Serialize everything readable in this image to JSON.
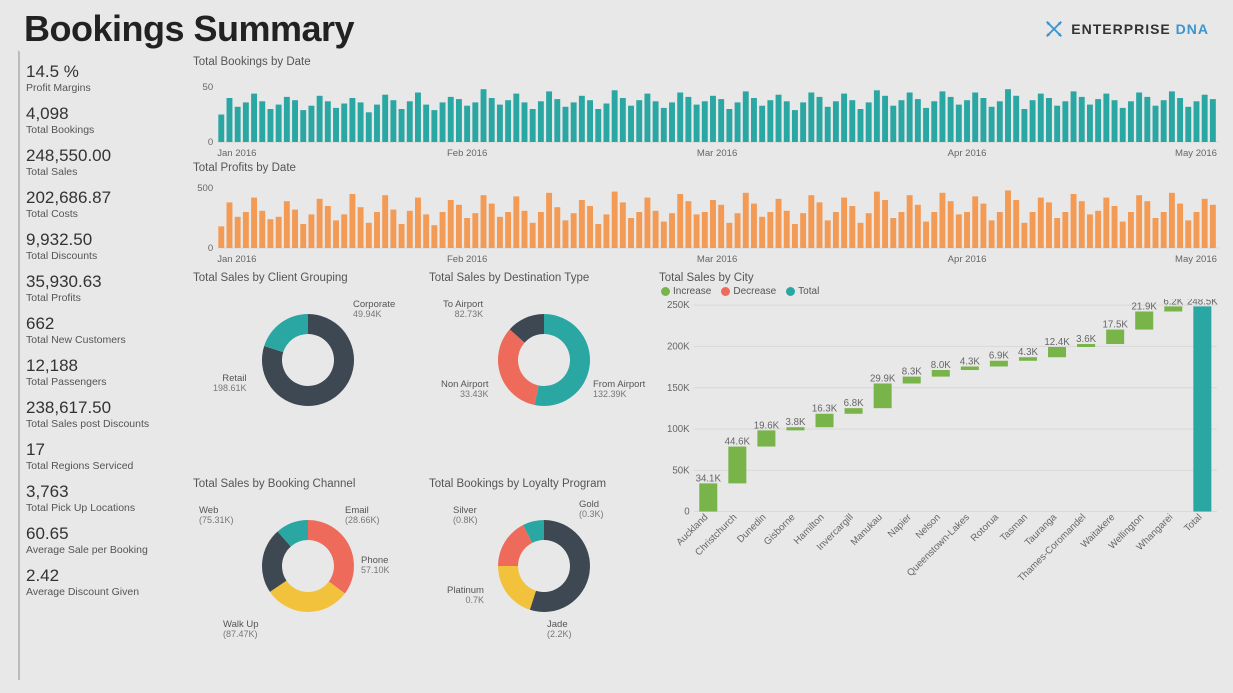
{
  "page": {
    "title": "Bookings Summary",
    "brand_main": "ENTERPRISE",
    "brand_accent": "DNA"
  },
  "colors": {
    "teal": "#2aa7a3",
    "orange": "#f39a54",
    "dark": "#3d4852",
    "yellow": "#f3c23d",
    "red": "#ee6a5a",
    "green": "#79b44b",
    "grid": "#d8d8d8",
    "axis_text": "#666666",
    "bg": "#e8e8e8"
  },
  "kpis": [
    {
      "value": "14.5 %",
      "label": "Profit Margins"
    },
    {
      "value": "4,098",
      "label": "Total Bookings"
    },
    {
      "value": "248,550.00",
      "label": "Total Sales"
    },
    {
      "value": "202,686.87",
      "label": "Total Costs"
    },
    {
      "value": "9,932.50",
      "label": "Total Discounts"
    },
    {
      "value": "35,930.63",
      "label": "Total Profits"
    },
    {
      "value": "662",
      "label": "Total New Customers"
    },
    {
      "value": "12,188",
      "label": "Total Passengers"
    },
    {
      "value": "238,617.50",
      "label": "Total Sales post Discounts"
    },
    {
      "value": "17",
      "label": "Total Regions Serviced"
    },
    {
      "value": "3,763",
      "label": "Total Pick Up Locations"
    },
    {
      "value": "60.65",
      "label": "Average Sale per Booking"
    },
    {
      "value": "2.42",
      "label": "Average Discount Given"
    }
  ],
  "bookings_by_date": {
    "title": "Total Bookings by Date",
    "type": "bar",
    "y_ticks": [
      0,
      50
    ],
    "y_max": 60,
    "x_labels": [
      "Jan 2016",
      "Feb 2016",
      "Mar 2016",
      "Apr 2016",
      "May 2016"
    ],
    "bar_color": "#2aa7a3",
    "values": [
      25,
      40,
      32,
      36,
      44,
      37,
      30,
      34,
      41,
      38,
      29,
      33,
      42,
      37,
      31,
      35,
      40,
      36,
      27,
      34,
      43,
      38,
      30,
      37,
      45,
      34,
      29,
      36,
      41,
      39,
      33,
      36,
      48,
      40,
      34,
      38,
      44,
      36,
      30,
      37,
      46,
      39,
      32,
      36,
      42,
      38,
      30,
      35,
      47,
      40,
      33,
      38,
      44,
      37,
      31,
      36,
      45,
      41,
      34,
      37,
      42,
      39,
      30,
      36,
      46,
      40,
      33,
      38,
      43,
      37,
      29,
      36,
      45,
      41,
      32,
      37,
      44,
      38,
      30,
      36,
      47,
      42,
      33,
      38,
      45,
      39,
      31,
      37,
      46,
      41,
      34,
      38,
      45,
      40,
      32,
      37,
      48,
      42,
      30,
      38,
      44,
      40,
      33,
      37,
      46,
      41,
      34,
      39,
      44,
      38,
      31,
      37,
      45,
      41,
      33,
      38,
      46,
      40,
      32,
      37,
      43,
      39
    ]
  },
  "profits_by_date": {
    "title": "Total Profits by Date",
    "type": "bar",
    "y_ticks": [
      0,
      500
    ],
    "y_max": 550,
    "x_labels": [
      "Jan 2016",
      "Feb 2016",
      "Mar 2016",
      "Apr 2016",
      "May 2016"
    ],
    "bar_color": "#f39a54",
    "values": [
      180,
      380,
      260,
      300,
      420,
      310,
      240,
      260,
      390,
      320,
      200,
      280,
      410,
      350,
      230,
      280,
      450,
      340,
      210,
      300,
      440,
      320,
      200,
      310,
      420,
      280,
      190,
      300,
      400,
      360,
      250,
      290,
      440,
      370,
      260,
      300,
      430,
      310,
      210,
      300,
      460,
      340,
      230,
      290,
      400,
      350,
      200,
      280,
      470,
      380,
      250,
      300,
      420,
      310,
      220,
      290,
      450,
      390,
      280,
      300,
      400,
      360,
      210,
      290,
      460,
      370,
      260,
      300,
      410,
      310,
      200,
      290,
      440,
      380,
      230,
      300,
      420,
      350,
      210,
      290,
      470,
      400,
      250,
      300,
      440,
      360,
      220,
      300,
      460,
      390,
      280,
      300,
      430,
      370,
      230,
      300,
      480,
      400,
      210,
      300,
      420,
      380,
      250,
      300,
      450,
      390,
      280,
      310,
      420,
      350,
      220,
      300,
      440,
      390,
      250,
      300,
      460,
      370,
      230,
      300,
      410,
      360
    ]
  },
  "donut_client": {
    "title": "Total Sales by Client Grouping",
    "slices": [
      {
        "label": "Retail",
        "value": "198.61K",
        "pct": 79.9,
        "color": "#3d4852"
      },
      {
        "label": "Corporate",
        "value": "49.94K",
        "pct": 20.1,
        "color": "#2aa7a3"
      }
    ]
  },
  "donut_destination": {
    "title": "Total Sales by Destination Type",
    "slices": [
      {
        "label": "From Airport",
        "value": "132.39K",
        "pct": 53.3,
        "color": "#2aa7a3"
      },
      {
        "label": "To Airport",
        "value": "82.73K",
        "pct": 33.3,
        "color": "#ee6a5a"
      },
      {
        "label": "Non Airport",
        "value": "33.43K",
        "pct": 13.4,
        "color": "#3d4852"
      }
    ]
  },
  "donut_channel": {
    "title": "Total Sales by Booking Channel",
    "slices": [
      {
        "label": "Walk Up",
        "value": "(87.47K)",
        "pct": 35.2,
        "color": "#ee6a5a"
      },
      {
        "label": "Web",
        "value": "(75.31K)",
        "pct": 30.3,
        "color": "#f3c23d"
      },
      {
        "label": "Phone",
        "value": "57.10K",
        "pct": 23.0,
        "color": "#3d4852"
      },
      {
        "label": "Email",
        "value": "(28.66K)",
        "pct": 11.5,
        "color": "#2aa7a3"
      }
    ]
  },
  "donut_loyalty": {
    "title": "Total Bookings by Loyalty Program",
    "slices": [
      {
        "label": "Jade",
        "value": "(2.2K)",
        "pct": 55.0,
        "color": "#3d4852"
      },
      {
        "label": "Silver",
        "value": "(0.8K)",
        "pct": 20.0,
        "color": "#f3c23d"
      },
      {
        "label": "Platinum",
        "value": "0.7K",
        "pct": 17.5,
        "color": "#ee6a5a"
      },
      {
        "label": "Gold",
        "value": "(0.3K)",
        "pct": 7.5,
        "color": "#2aa7a3"
      }
    ]
  },
  "waterfall": {
    "title": "Total Sales by City",
    "legend": {
      "increase": "Increase",
      "decrease": "Decrease",
      "total": "Total"
    },
    "y_ticks": [
      0,
      "50K",
      "100K",
      "150K",
      "200K",
      "250K"
    ],
    "y_max": 250,
    "colors": {
      "increase": "#79b44b",
      "decrease": "#ee6a5a",
      "total": "#2aa7a3"
    },
    "items": [
      {
        "label": "Auckland",
        "value": 34.1,
        "display": "34.1K"
      },
      {
        "label": "Christchurch",
        "value": 44.6,
        "display": "44.6K"
      },
      {
        "label": "Dunedin",
        "value": 19.6,
        "display": "19.6K"
      },
      {
        "label": "Gisborne",
        "value": 3.8,
        "display": "3.8K"
      },
      {
        "label": "Hamilton",
        "value": 16.3,
        "display": "16.3K"
      },
      {
        "label": "Invercargill",
        "value": 6.8,
        "display": "6.8K"
      },
      {
        "label": "Manukau",
        "value": 29.9,
        "display": "29.9K"
      },
      {
        "label": "Napier",
        "value": 8.3,
        "display": "8.3K"
      },
      {
        "label": "Nelson",
        "value": 8.0,
        "display": "8.0K"
      },
      {
        "label": "Queenstown-Lakes",
        "value": 4.3,
        "display": "4.3K"
      },
      {
        "label": "Rotorua",
        "value": 6.9,
        "display": "6.9K"
      },
      {
        "label": "Tasman",
        "value": 4.3,
        "display": "4.3K"
      },
      {
        "label": "Tauranga",
        "value": 12.4,
        "display": "12.4K"
      },
      {
        "label": "Thames-Coromandel",
        "value": 3.6,
        "display": "3.6K"
      },
      {
        "label": "Waitakere",
        "value": 17.5,
        "display": "17.5K"
      },
      {
        "label": "Wellington",
        "value": 21.9,
        "display": "21.9K"
      },
      {
        "label": "Whangarei",
        "value": 6.2,
        "display": "6.2K"
      }
    ],
    "total_label": "Total",
    "total_display": "248.5K"
  }
}
